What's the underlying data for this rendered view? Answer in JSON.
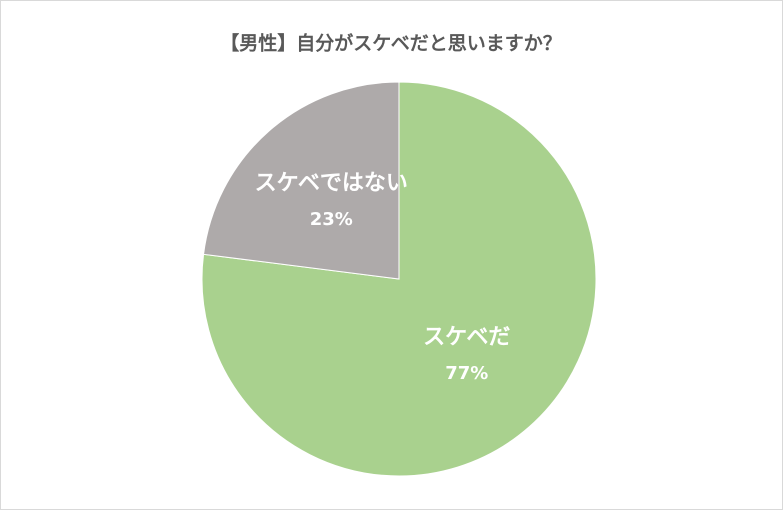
{
  "chart_data": {
    "type": "pie",
    "title": "【男性】自分がスケベだと思いますか？",
    "categories": [
      "スケベだ",
      "スケベではない"
    ],
    "values": [
      77,
      23
    ],
    "value_labels": [
      "77%",
      "23%"
    ],
    "colors": [
      "#a9d18e",
      "#aeaaaa"
    ]
  }
}
